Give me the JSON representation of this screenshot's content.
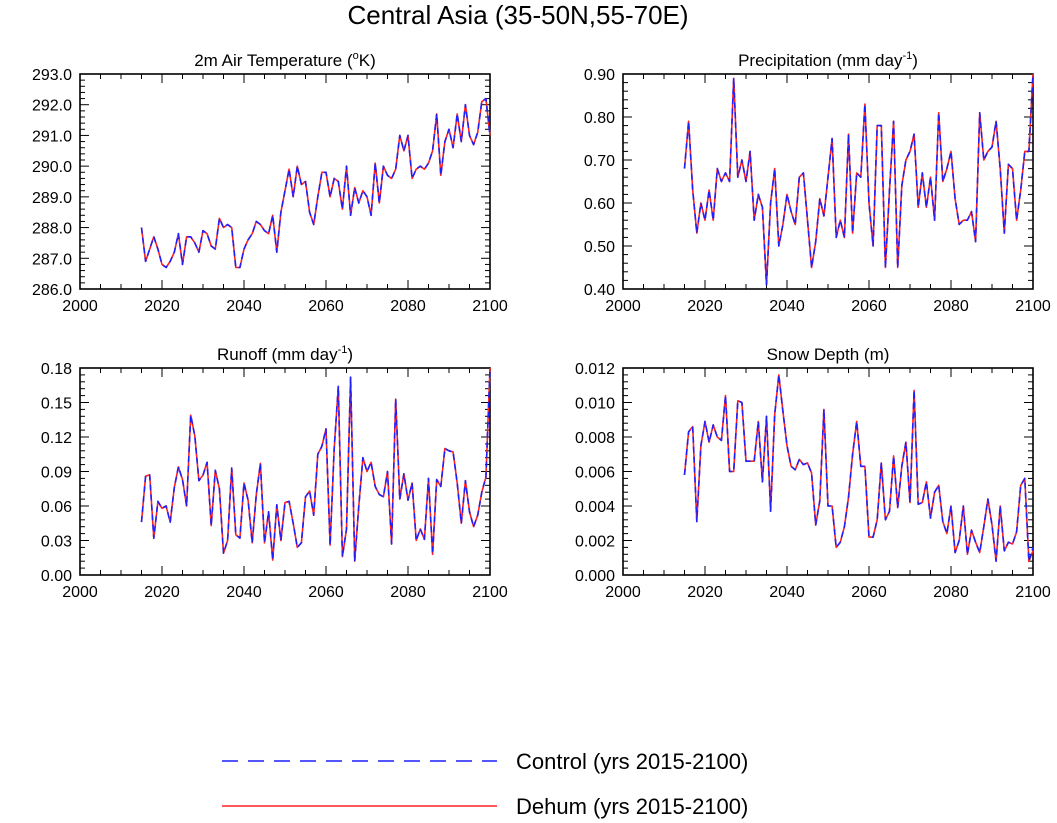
{
  "figure_title": "Central Asia (35-50N,55-70E)",
  "colors": {
    "control": "#1f1fff",
    "dehum": "#ff2020",
    "axis": "#000000"
  },
  "legend": [
    {
      "key": "control",
      "label": "Control (yrs 2015-2100)",
      "style": "dashed"
    },
    {
      "key": "dehum",
      "label": "Dehum (yrs 2015-2100)",
      "style": "solid"
    }
  ],
  "chart_data": [
    {
      "type": "line",
      "title": "2m Air Temperature (",
      "title_sup": "o",
      "title_tail": "K)",
      "xlim": [
        2000,
        2100
      ],
      "ylim": [
        286.0,
        293.0
      ],
      "xticks": [
        2000,
        2020,
        2040,
        2060,
        2080,
        2100
      ],
      "yticks": [
        286.0,
        287.0,
        288.0,
        289.0,
        290.0,
        291.0,
        292.0,
        293.0
      ],
      "ytick_decimals": 1,
      "x_start": 2015,
      "series": [
        {
          "name": "Control",
          "values": [
            288.0,
            286.9,
            287.3,
            287.7,
            287.3,
            286.8,
            286.7,
            286.9,
            287.2,
            287.8,
            286.8,
            287.7,
            287.7,
            287.5,
            287.2,
            287.9,
            287.8,
            287.4,
            287.3,
            288.3,
            288.0,
            288.1,
            288.0,
            286.7,
            286.7,
            287.3,
            287.6,
            287.8,
            288.2,
            288.1,
            287.9,
            287.8,
            288.4,
            287.2,
            288.5,
            289.2,
            289.9,
            289.0,
            290.0,
            289.4,
            289.5,
            288.5,
            288.1,
            289.0,
            289.8,
            289.8,
            289.0,
            289.6,
            289.5,
            288.6,
            290.0,
            288.4,
            289.3,
            288.8,
            289.2,
            289.0,
            288.4,
            290.1,
            288.8,
            290.0,
            289.7,
            289.6,
            289.9,
            291.0,
            290.5,
            291.0,
            289.6,
            289.9,
            290.0,
            289.9,
            290.1,
            290.5,
            291.7,
            289.7,
            290.8,
            291.2,
            290.6,
            291.7,
            290.8,
            292.0,
            291.0,
            290.7,
            291.1,
            292.1,
            292.2,
            291.0
          ]
        },
        {
          "name": "Dehum",
          "values": [
            288.0,
            286.9,
            287.3,
            287.7,
            287.3,
            286.8,
            286.7,
            286.9,
            287.2,
            287.8,
            286.8,
            287.7,
            287.7,
            287.5,
            287.2,
            287.9,
            287.8,
            287.4,
            287.3,
            288.3,
            288.0,
            288.1,
            288.0,
            286.7,
            286.7,
            287.3,
            287.6,
            287.8,
            288.2,
            288.1,
            287.9,
            287.8,
            288.4,
            287.2,
            288.5,
            289.2,
            289.9,
            289.0,
            290.0,
            289.4,
            289.5,
            288.5,
            288.1,
            289.0,
            289.8,
            289.8,
            289.0,
            289.6,
            289.5,
            288.6,
            290.0,
            288.4,
            289.3,
            288.8,
            289.2,
            289.0,
            288.4,
            290.1,
            288.8,
            290.0,
            289.7,
            289.6,
            289.9,
            291.0,
            290.5,
            291.0,
            289.6,
            289.9,
            290.0,
            289.9,
            290.1,
            290.5,
            291.7,
            289.7,
            290.8,
            291.2,
            290.6,
            291.7,
            290.8,
            292.0,
            291.0,
            290.7,
            291.1,
            292.1,
            292.2,
            291.0
          ]
        }
      ]
    },
    {
      "type": "line",
      "title": "Precipitation (mm day",
      "title_sup": "-1",
      "title_tail": ")",
      "xlim": [
        2000,
        2100
      ],
      "ylim": [
        0.4,
        0.9
      ],
      "xticks": [
        2000,
        2020,
        2040,
        2060,
        2080,
        2100
      ],
      "yticks": [
        0.4,
        0.5,
        0.6,
        0.7,
        0.8,
        0.9
      ],
      "ytick_decimals": 2,
      "x_start": 2015,
      "series": [
        {
          "name": "Control",
          "values": [
            0.68,
            0.79,
            0.63,
            0.53,
            0.6,
            0.56,
            0.63,
            0.56,
            0.68,
            0.65,
            0.67,
            0.65,
            0.89,
            0.66,
            0.7,
            0.65,
            0.72,
            0.56,
            0.62,
            0.59,
            0.41,
            0.6,
            0.68,
            0.5,
            0.55,
            0.62,
            0.58,
            0.55,
            0.66,
            0.67,
            0.56,
            0.45,
            0.51,
            0.61,
            0.57,
            0.66,
            0.75,
            0.52,
            0.56,
            0.52,
            0.76,
            0.53,
            0.67,
            0.66,
            0.83,
            0.6,
            0.5,
            0.78,
            0.78,
            0.45,
            0.63,
            0.79,
            0.45,
            0.64,
            0.7,
            0.72,
            0.76,
            0.59,
            0.67,
            0.59,
            0.66,
            0.56,
            0.81,
            0.65,
            0.68,
            0.72,
            0.61,
            0.55,
            0.56,
            0.56,
            0.58,
            0.51,
            0.81,
            0.7,
            0.72,
            0.73,
            0.79,
            0.68,
            0.53,
            0.69,
            0.68,
            0.56,
            0.63,
            0.72,
            0.72,
            0.9
          ]
        },
        {
          "name": "Dehum",
          "values": [
            0.68,
            0.79,
            0.63,
            0.53,
            0.6,
            0.56,
            0.63,
            0.56,
            0.68,
            0.65,
            0.67,
            0.65,
            0.89,
            0.66,
            0.7,
            0.65,
            0.72,
            0.56,
            0.62,
            0.59,
            0.41,
            0.6,
            0.68,
            0.5,
            0.55,
            0.62,
            0.58,
            0.55,
            0.66,
            0.67,
            0.56,
            0.45,
            0.51,
            0.61,
            0.57,
            0.66,
            0.75,
            0.52,
            0.56,
            0.52,
            0.76,
            0.53,
            0.67,
            0.66,
            0.83,
            0.6,
            0.5,
            0.78,
            0.78,
            0.45,
            0.63,
            0.79,
            0.45,
            0.64,
            0.7,
            0.72,
            0.76,
            0.59,
            0.67,
            0.59,
            0.66,
            0.56,
            0.81,
            0.65,
            0.68,
            0.72,
            0.61,
            0.55,
            0.56,
            0.56,
            0.58,
            0.51,
            0.81,
            0.7,
            0.72,
            0.73,
            0.79,
            0.68,
            0.53,
            0.69,
            0.68,
            0.56,
            0.63,
            0.72,
            0.72,
            0.9
          ]
        }
      ]
    },
    {
      "type": "line",
      "title": "Runoff (mm day",
      "title_sup": "-1",
      "title_tail": ")",
      "xlim": [
        2000,
        2100
      ],
      "ylim": [
        0.0,
        0.18
      ],
      "xticks": [
        2000,
        2020,
        2040,
        2060,
        2080,
        2100
      ],
      "yticks": [
        0.0,
        0.03,
        0.06,
        0.09,
        0.12,
        0.15,
        0.18
      ],
      "ytick_decimals": 2,
      "x_start": 2015,
      "series": [
        {
          "name": "Control",
          "values": [
            0.046,
            0.086,
            0.087,
            0.032,
            0.064,
            0.058,
            0.06,
            0.046,
            0.076,
            0.094,
            0.083,
            0.06,
            0.139,
            0.121,
            0.082,
            0.087,
            0.098,
            0.043,
            0.091,
            0.075,
            0.019,
            0.03,
            0.093,
            0.035,
            0.032,
            0.08,
            0.065,
            0.028,
            0.07,
            0.097,
            0.028,
            0.055,
            0.013,
            0.061,
            0.03,
            0.063,
            0.064,
            0.045,
            0.024,
            0.028,
            0.068,
            0.073,
            0.052,
            0.105,
            0.112,
            0.127,
            0.026,
            0.11,
            0.164,
            0.016,
            0.04,
            0.172,
            0.012,
            0.06,
            0.102,
            0.09,
            0.098,
            0.077,
            0.07,
            0.068,
            0.09,
            0.027,
            0.153,
            0.066,
            0.088,
            0.065,
            0.08,
            0.03,
            0.04,
            0.031,
            0.084,
            0.018,
            0.083,
            0.077,
            0.11,
            0.108,
            0.107,
            0.08,
            0.045,
            0.082,
            0.055,
            0.042,
            0.052,
            0.072,
            0.085,
            0.18
          ]
        },
        {
          "name": "Dehum",
          "values": [
            0.046,
            0.086,
            0.087,
            0.032,
            0.064,
            0.058,
            0.06,
            0.046,
            0.076,
            0.094,
            0.083,
            0.06,
            0.139,
            0.121,
            0.082,
            0.087,
            0.098,
            0.043,
            0.091,
            0.075,
            0.019,
            0.03,
            0.093,
            0.035,
            0.032,
            0.08,
            0.065,
            0.028,
            0.07,
            0.097,
            0.028,
            0.055,
            0.013,
            0.061,
            0.03,
            0.063,
            0.064,
            0.045,
            0.024,
            0.028,
            0.068,
            0.073,
            0.052,
            0.105,
            0.112,
            0.127,
            0.026,
            0.11,
            0.164,
            0.016,
            0.04,
            0.172,
            0.012,
            0.06,
            0.102,
            0.09,
            0.098,
            0.077,
            0.07,
            0.068,
            0.09,
            0.027,
            0.153,
            0.066,
            0.088,
            0.065,
            0.08,
            0.03,
            0.04,
            0.031,
            0.084,
            0.018,
            0.083,
            0.077,
            0.11,
            0.108,
            0.107,
            0.08,
            0.045,
            0.082,
            0.055,
            0.042,
            0.052,
            0.072,
            0.085,
            0.18
          ]
        }
      ]
    },
    {
      "type": "line",
      "title": "Snow Depth (m)",
      "title_sup": "",
      "title_tail": "",
      "xlim": [
        2000,
        2100
      ],
      "ylim": [
        0.0,
        0.012
      ],
      "xticks": [
        2000,
        2020,
        2040,
        2060,
        2080,
        2100
      ],
      "yticks": [
        0.0,
        0.002,
        0.004,
        0.006,
        0.008,
        0.01,
        0.012
      ],
      "ytick_decimals": 3,
      "x_start": 2015,
      "series": [
        {
          "name": "Control",
          "values": [
            0.0058,
            0.0083,
            0.0086,
            0.0031,
            0.0075,
            0.0089,
            0.0077,
            0.0087,
            0.008,
            0.0078,
            0.0104,
            0.006,
            0.006,
            0.0101,
            0.01,
            0.0066,
            0.0066,
            0.0066,
            0.0089,
            0.0054,
            0.0092,
            0.0037,
            0.0093,
            0.0116,
            0.0095,
            0.0075,
            0.0063,
            0.0061,
            0.0067,
            0.0064,
            0.0065,
            0.0059,
            0.0029,
            0.0043,
            0.0096,
            0.004,
            0.004,
            0.0016,
            0.0019,
            0.0028,
            0.0045,
            0.007,
            0.0089,
            0.0063,
            0.0063,
            0.0022,
            0.0022,
            0.0032,
            0.0065,
            0.0032,
            0.0037,
            0.0069,
            0.0039,
            0.0063,
            0.0077,
            0.0042,
            0.0107,
            0.0041,
            0.0042,
            0.0054,
            0.0033,
            0.0048,
            0.0052,
            0.0031,
            0.0024,
            0.004,
            0.0013,
            0.002,
            0.004,
            0.0012,
            0.0026,
            0.0019,
            0.0013,
            0.0028,
            0.0044,
            0.0029,
            0.0008,
            0.004,
            0.0014,
            0.0019,
            0.0018,
            0.0025,
            0.0052,
            0.0056,
            0.0008,
            0.0016
          ]
        },
        {
          "name": "Dehum",
          "values": [
            0.0058,
            0.0083,
            0.0086,
            0.0031,
            0.0075,
            0.0089,
            0.0077,
            0.0087,
            0.008,
            0.0078,
            0.0104,
            0.006,
            0.006,
            0.0101,
            0.01,
            0.0066,
            0.0066,
            0.0066,
            0.0089,
            0.0054,
            0.0092,
            0.0037,
            0.0093,
            0.0116,
            0.0095,
            0.0075,
            0.0063,
            0.0061,
            0.0067,
            0.0064,
            0.0065,
            0.0059,
            0.0029,
            0.0043,
            0.0096,
            0.004,
            0.004,
            0.0016,
            0.0019,
            0.0028,
            0.0045,
            0.007,
            0.0089,
            0.0063,
            0.0063,
            0.0022,
            0.0022,
            0.0032,
            0.0065,
            0.0032,
            0.0037,
            0.0069,
            0.0039,
            0.0063,
            0.0077,
            0.0042,
            0.0107,
            0.0041,
            0.0042,
            0.0054,
            0.0033,
            0.0048,
            0.0052,
            0.0031,
            0.0024,
            0.004,
            0.0013,
            0.002,
            0.004,
            0.0012,
            0.0026,
            0.0019,
            0.0013,
            0.0028,
            0.0044,
            0.0029,
            0.0008,
            0.004,
            0.0014,
            0.0019,
            0.0018,
            0.0025,
            0.0052,
            0.0056,
            0.0008,
            0.0014
          ]
        }
      ]
    }
  ]
}
